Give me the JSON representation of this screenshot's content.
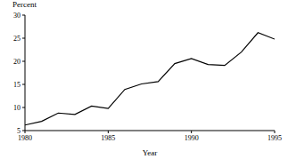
{
  "chart_data": {
    "type": "line",
    "x_label": "Year",
    "y_label": "Percent",
    "x": [
      1980,
      1981,
      1982,
      1983,
      1984,
      1985,
      1986,
      1987,
      1988,
      1989,
      1990,
      1991,
      1992,
      1993,
      1994,
      1995
    ],
    "values": [
      6.2,
      7.0,
      8.8,
      8.5,
      10.3,
      9.8,
      13.9,
      15.1,
      15.6,
      19.5,
      20.6,
      19.3,
      19.1,
      22.0,
      26.2,
      24.8
    ],
    "color": "#000000",
    "xlim": [
      1980,
      1995
    ],
    "xticks": [
      1980,
      1985,
      1990,
      1995
    ],
    "ylim": [
      5,
      30
    ],
    "yticks": [
      5,
      10,
      15,
      20,
      25,
      30
    ],
    "grid": false
  }
}
